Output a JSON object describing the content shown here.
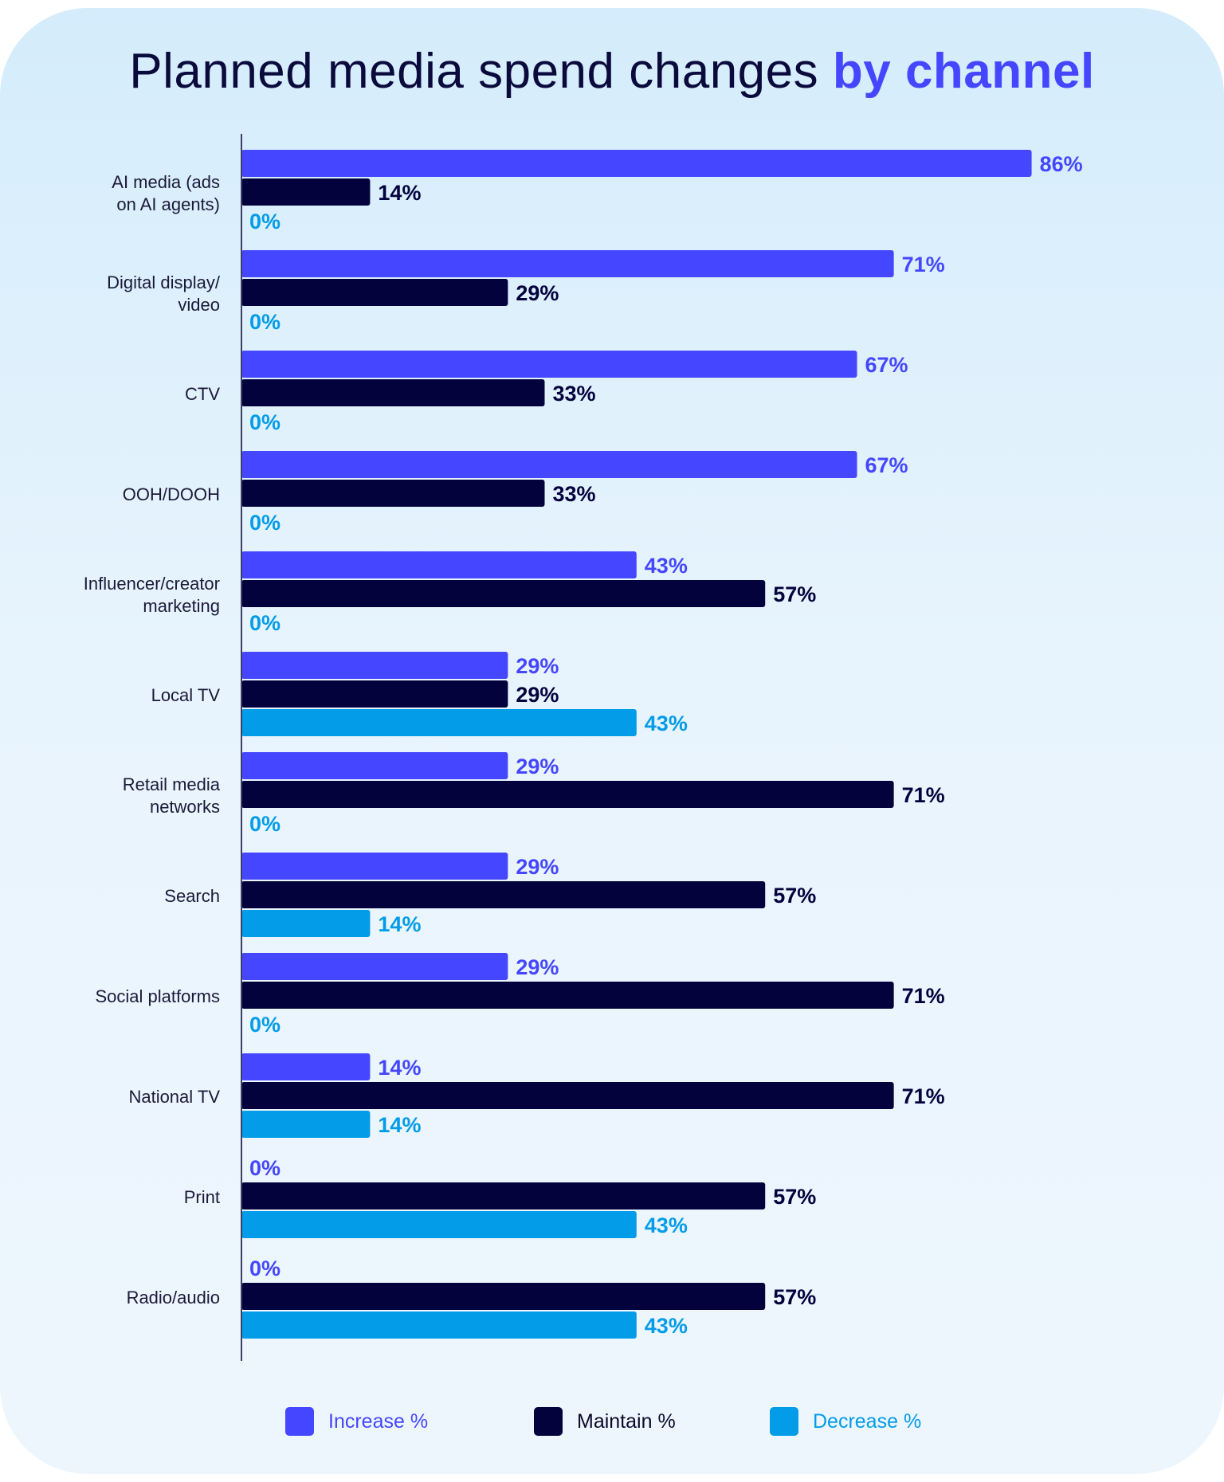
{
  "title": {
    "main": "Planned media spend changes ",
    "accent": "by channel"
  },
  "colors": {
    "increase": "#4447ff",
    "maintain": "#03023d",
    "decrease": "#029ce8",
    "axis": "#3a3f63",
    "category_text": "#1a1a38"
  },
  "chart_data": {
    "type": "bar",
    "orientation": "horizontal",
    "title": "Planned media spend changes by channel",
    "xlabel": "",
    "ylabel": "",
    "xlim": [
      0,
      100
    ],
    "grid": false,
    "legend_position": "bottom",
    "categories": [
      [
        "AI media (ads",
        "on AI agents)"
      ],
      [
        "Digital display/",
        "video"
      ],
      [
        "CTV"
      ],
      [
        "OOH/DOOH"
      ],
      [
        "Influencer/creator",
        "marketing"
      ],
      [
        "Local TV"
      ],
      [
        "Retail media",
        "networks"
      ],
      [
        "Search"
      ],
      [
        "Social platforms"
      ],
      [
        "National TV"
      ],
      [
        "Print"
      ],
      [
        "Radio/audio"
      ]
    ],
    "series": [
      {
        "name": "Increase %",
        "color": "#4447ff",
        "values": [
          86,
          71,
          67,
          67,
          43,
          29,
          29,
          29,
          29,
          14,
          0,
          0
        ]
      },
      {
        "name": "Maintain %",
        "color": "#03023d",
        "values": [
          14,
          29,
          33,
          33,
          57,
          29,
          71,
          57,
          71,
          71,
          57,
          57
        ]
      },
      {
        "name": "Decrease %",
        "color": "#029ce8",
        "values": [
          0,
          0,
          0,
          0,
          0,
          43,
          0,
          14,
          0,
          14,
          43,
          43
        ]
      }
    ],
    "data_labels": [
      [
        "86%",
        "71%",
        "67%",
        "67%",
        "43%",
        "29%",
        "29%",
        "29%",
        "29%",
        "14%",
        "0%",
        "0%"
      ],
      [
        "14%",
        "29%",
        "33%",
        "33%",
        "57%",
        "29%",
        "71%",
        "57%",
        "71%",
        "71%",
        "57%",
        "57%"
      ],
      [
        "0%",
        "0%",
        "0%",
        "0%",
        "0%",
        "43%",
        "0%",
        "14%",
        "0%",
        "14%",
        "43%",
        "43%"
      ]
    ]
  },
  "legend": [
    {
      "label": "Increase %",
      "color": "#4447ff"
    },
    {
      "label": "Maintain %",
      "color": "#03023d"
    },
    {
      "label": "Decrease %",
      "color": "#029ce8"
    }
  ]
}
